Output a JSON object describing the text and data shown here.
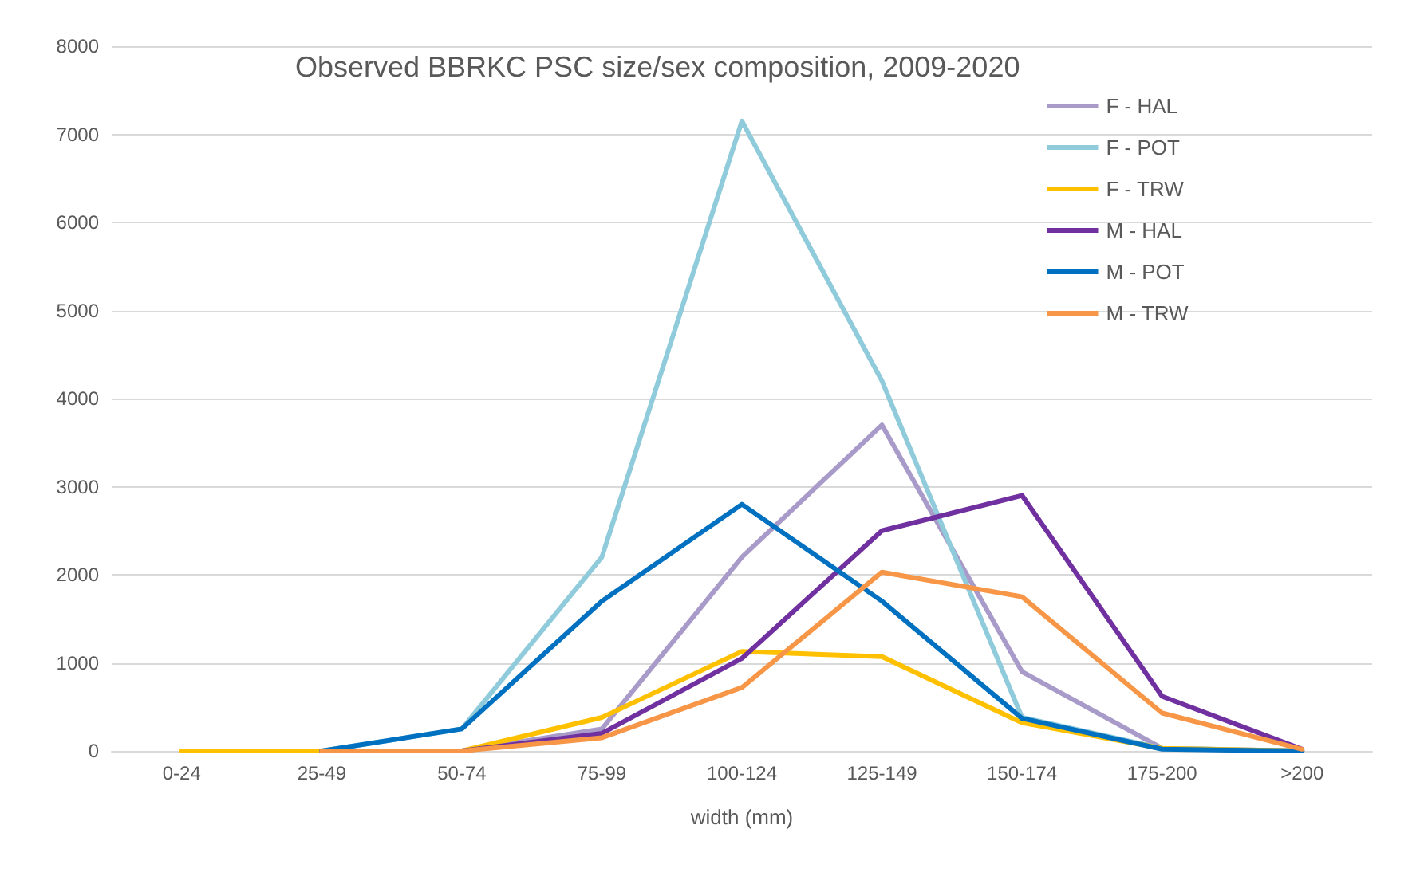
{
  "chart_data": {
    "type": "line",
    "title": "Observed BBRKC PSC size/sex composition, 2009-2020",
    "xlabel": "width (mm)",
    "categories": [
      "0-24",
      "25-49",
      "50-74",
      "75-99",
      "100-124",
      "125-149",
      "150-174",
      "175-200",
      ">200"
    ],
    "series": [
      {
        "name": "F - HAL",
        "color": "#a99bc9",
        "values": [
          null,
          0,
          0,
          250,
          2200,
          3700,
          900,
          30,
          0
        ]
      },
      {
        "name": "F - POT",
        "color": "#8fcbdb",
        "values": [
          null,
          0,
          250,
          2200,
          7150,
          4200,
          380,
          30,
          0
        ]
      },
      {
        "name": "F - TRW",
        "color": "#ffc000",
        "values": [
          0,
          0,
          0,
          380,
          1130,
          1070,
          320,
          30,
          0
        ]
      },
      {
        "name": "M - HAL",
        "color": "#7030a0",
        "values": [
          null,
          0,
          0,
          200,
          1050,
          2500,
          2900,
          620,
          20
        ]
      },
      {
        "name": "M - POT",
        "color": "#0070c0",
        "values": [
          null,
          0,
          250,
          1700,
          2800,
          1700,
          370,
          20,
          0
        ]
      },
      {
        "name": "M - TRW",
        "color": "#f79646",
        "values": [
          null,
          0,
          0,
          150,
          720,
          2030,
          1750,
          430,
          20
        ]
      }
    ],
    "ylim": [
      0,
      8000
    ],
    "yticks": [
      0,
      1000,
      2000,
      3000,
      4000,
      5000,
      6000,
      7000,
      8000
    ],
    "grid": "y",
    "legend": "top right",
    "marker": "none",
    "line_style": "solid"
  }
}
